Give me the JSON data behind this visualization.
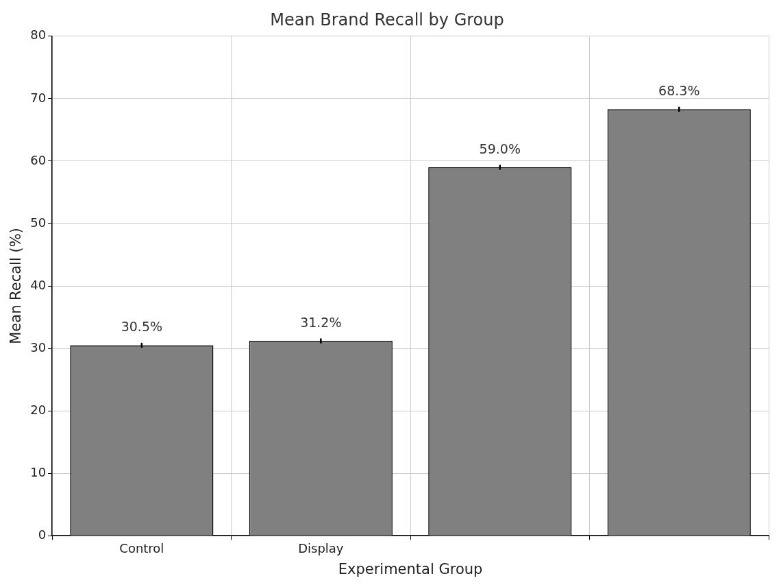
{
  "chart_data": {
    "type": "bar",
    "title": "Mean Brand Recall by Group",
    "xlabel": "Experimental Group",
    "ylabel": "Mean Recall (%)",
    "categories": [
      "Control",
      "Display",
      null,
      null
    ],
    "values": [
      30.5,
      31.2,
      59.0,
      68.3
    ],
    "errors": [
      0.4,
      0.4,
      0.4,
      0.4
    ],
    "value_labels": [
      "30.5%",
      "31.2%",
      "59.0%",
      "68.3%"
    ],
    "color": "#808080",
    "ylim": [
      0,
      80
    ],
    "yticks": [
      0,
      10,
      20,
      30,
      40,
      50,
      60,
      70,
      80
    ],
    "grid": true
  }
}
